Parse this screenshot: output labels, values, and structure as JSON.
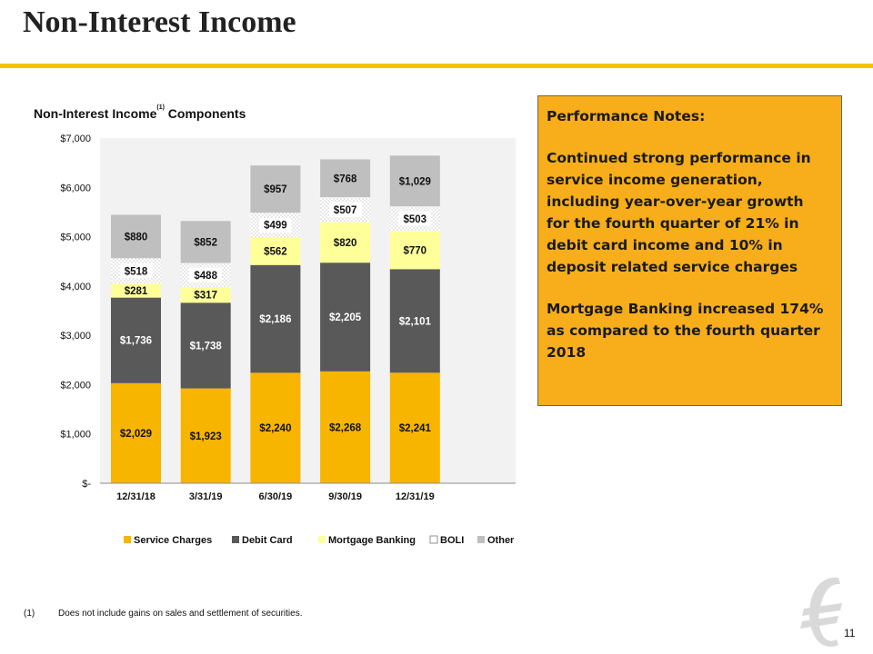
{
  "page": {
    "title": "Non-Interest Income",
    "page_number": "11"
  },
  "chart_title": {
    "text": "Non-Interest Income",
    "superscript": "(1)",
    "suffix": " Components"
  },
  "notes": {
    "heading": "Performance Notes:",
    "paragraphs": [
      "Continued strong performance in service income generation, including year-over-year growth for the fourth quarter of 21% in debit card income and 10% in deposit related service charges",
      "Mortgage Banking increased 174% as compared to the fourth quarter 2018"
    ]
  },
  "footnote": {
    "number": "(1)",
    "text": "Does not include gains on sales and settlement of securities."
  },
  "colors": {
    "accent": "#F2C200",
    "notes_bg": "#F7AE1A",
    "service_charges": "#F7B500",
    "debit_card": "#595959",
    "mortgage_banking": "#FFFF9A",
    "boli": "#FFFFFF",
    "other": "#BFBFBF",
    "plot_bg": "#F2F2F2"
  },
  "chart_data": {
    "type": "bar",
    "stacked": true,
    "categories": [
      "12/31/18",
      "3/31/19",
      "6/30/19",
      "9/30/19",
      "12/31/19"
    ],
    "series": [
      {
        "name": "Service Charges",
        "values": [
          2029,
          1923,
          2240,
          2268,
          2241
        ],
        "labels": [
          "$2,029",
          "$1,923",
          "$2,240",
          "$2,268",
          "$2,241"
        ]
      },
      {
        "name": "Debit Card",
        "values": [
          1736,
          1738,
          2186,
          2205,
          2101
        ],
        "labels": [
          "$1,736",
          "$1,738",
          "$2,186",
          "$2,205",
          "$2,101"
        ]
      },
      {
        "name": "Mortgage Banking",
        "values": [
          281,
          317,
          562,
          820,
          770
        ],
        "labels": [
          "$281",
          "$317",
          "$562",
          "$820",
          "$770"
        ]
      },
      {
        "name": "BOLI",
        "values": [
          518,
          488,
          499,
          507,
          503
        ],
        "labels": [
          "$518",
          "$488",
          "$499",
          "$507",
          "$503"
        ]
      },
      {
        "name": "Other",
        "values": [
          880,
          852,
          957,
          768,
          1029
        ],
        "labels": [
          "$880",
          "$852",
          "$957",
          "$768",
          "$1,029"
        ]
      }
    ],
    "y_ticks": [
      "$-",
      "$1,000",
      "$2,000",
      "$3,000",
      "$4,000",
      "$5,000",
      "$6,000",
      "$7,000"
    ],
    "ylim": [
      0,
      7000
    ],
    "grid": false,
    "legend": "bottom"
  }
}
